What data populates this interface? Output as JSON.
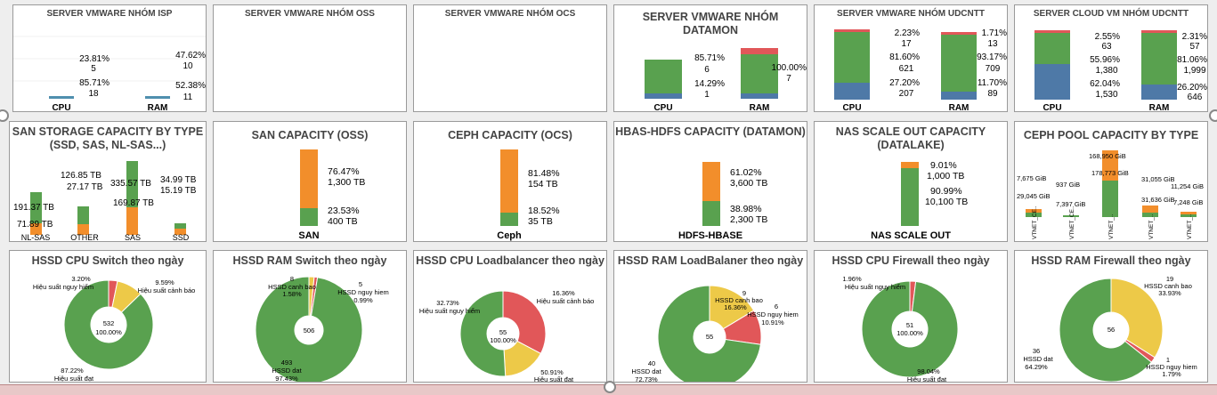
{
  "colors": {
    "green": "#59a14f",
    "blue": "#4e79a7",
    "red": "#e15759",
    "orange": "#f28e2b",
    "yellow": "#edc948",
    "steel": "#4f8fae"
  },
  "row1": {
    "isp": {
      "title": "SERVER VMWARE NHÓM ISP",
      "cats": [
        "CPU",
        "RAM"
      ],
      "cpu": {
        "a_pct": "23.81%",
        "a_val": "5",
        "b_pct": "85.71%",
        "b_val": "18"
      },
      "ram": {
        "a_pct": "47.62%",
        "a_val": "10",
        "b_pct": "52.38%",
        "b_val": "11"
      }
    },
    "oss": {
      "title": "SERVER VMWARE NHÓM OSS"
    },
    "ocs": {
      "title": "SERVER VMWARE NHÓM OCS"
    },
    "datamon": {
      "title": "SERVER VMWARE NHÓM DATAMON",
      "cats": [
        "CPU",
        "RAM"
      ],
      "cpu": {
        "a_pct": "85.71%",
        "a_val": "6",
        "b_pct": "14.29%",
        "b_val": "1"
      },
      "ram": {
        "a_pct": "100.00%",
        "a_val": "7"
      }
    },
    "udcntt": {
      "title": "SERVER VMWARE NHÓM UDCNTT",
      "cats": [
        "CPU",
        "RAM"
      ],
      "cpu": {
        "l1": "2.23%",
        "l2": "17",
        "l3": "81.60%",
        "l4": "621",
        "l5": "27.20%",
        "l6": "207"
      },
      "ram": {
        "l1": "1.71%",
        "l2": "13",
        "l3": "93.17%",
        "l4": "709",
        "l5": "11.70%",
        "l6": "89"
      }
    },
    "cloud": {
      "title": "SERVER CLOUD VM NHÓM UDCNTT",
      "cats": [
        "CPU",
        "RAM"
      ],
      "cpu": {
        "l1": "2.55%",
        "l2": "63",
        "l3": "55.96%",
        "l4": "1,380",
        "l5": "62.04%",
        "l6": "1,530"
      },
      "ram": {
        "l1": "2.31%",
        "l2": "57",
        "l3": "81.06%",
        "l4": "1,999",
        "l5": "26.20%",
        "l6": "646"
      }
    }
  },
  "row2": {
    "san_type": {
      "title": "SAN STORAGE CAPACITY BY TYPE (SSD, SAS, NL-SAS...)",
      "cats": [
        "NL-SAS",
        "OTHER",
        "SAS",
        "SSD"
      ],
      "total": [
        "191.37 TB",
        "126.85 TB",
        "335.57 TB",
        "34.99 TB"
      ],
      "used": [
        "71.89 TB",
        "27.17 TB",
        "169.87 TB",
        "15.19 TB"
      ]
    },
    "san_oss": {
      "title": "SAN CAPACITY (OSS)",
      "cat": "SAN",
      "top_pct": "76.47%",
      "top_val": "1,300 TB",
      "bot_pct": "23.53%",
      "bot_val": "400 TB"
    },
    "ceph_ocs": {
      "title": "CEPH CAPACITY (OCS)",
      "cat": "Ceph",
      "top_pct": "81.48%",
      "top_val": "154 TB",
      "bot_pct": "18.52%",
      "bot_val": "35 TB"
    },
    "hbase": {
      "title": "HBAS-HDFS CAPACITY (DATAMON)",
      "cat": "HDFS-HBASE",
      "top_pct": "61.02%",
      "top_val": "3,600 TB",
      "bot_pct": "38.98%",
      "bot_val": "2,300 TB"
    },
    "nas": {
      "title": "NAS SCALE OUT CAPACITY (DATALAKE)",
      "cat": "NAS SCALE OUT",
      "top_pct": "9.01%",
      "top_val": "1,000 TB",
      "bot_pct": "90.99%",
      "bot_val": "10,100 TB"
    },
    "ceph_pool": {
      "title": "CEPH POOL CAPACITY BY TYPE",
      "labels": [
        "7,675 GiB",
        "29,045 GiB",
        "937 GiB",
        "7,397 GiB",
        "168,950 GiB",
        "178,773 GiB",
        "31,055 GiB",
        "31,636 GiB",
        "11,254 GiB",
        "7,248 GiB"
      ],
      "cats": [
        "VTNET_CE..",
        "VTNET_CE..",
        "VTNET_..",
        "VTNET_..",
        "VTNET_.."
      ]
    }
  },
  "row3": [
    {
      "title": "HSSD CPU Switch theo ngày",
      "center": [
        "532",
        "100.00%"
      ],
      "labels": [
        [
          "3.20%",
          "Hiệu suất nguy hiểm"
        ],
        [
          "9.59%",
          "Hiệu suất cảnh báo"
        ],
        [
          "87.22%",
          "Hiệu suất đạt"
        ]
      ]
    },
    {
      "title": "HSSD RAM Switch theo ngày",
      "center": [
        "506"
      ],
      "labels": [
        [
          "8",
          "HSSD canh bao",
          "1.58%"
        ],
        [
          "5",
          "HSSD nguy hiem",
          "0.99%"
        ],
        [
          "493",
          "HSSD dat",
          "97.43%"
        ]
      ]
    },
    {
      "title": "HSSD CPU Loadbalancer theo ngày",
      "center": [
        "55",
        "100.00%"
      ],
      "labels": [
        [
          "32.73%",
          "Hiệu suất nguy hiểm"
        ],
        [
          "16.36%",
          "Hiệu suất cảnh báo"
        ],
        [
          "50.91%",
          "Hiệu suất đạt"
        ]
      ]
    },
    {
      "title": "HSSD RAM LoadBalaner theo ngày",
      "center": [
        "55"
      ],
      "labels": [
        [
          "9",
          "HSSD canh bao",
          "16.36%"
        ],
        [
          "6",
          "HSSD nguy hiem",
          "10.91%"
        ],
        [
          "40",
          "HSSD dat",
          "72.73%"
        ]
      ]
    },
    {
      "title": "HSSD CPU Firewall theo ngày",
      "center": [
        "51",
        "100.00%"
      ],
      "labels": [
        [
          "1.96%",
          "Hiệu suất nguy hiểm"
        ],
        [
          "98.04%",
          "Hiệu suất đạt"
        ]
      ]
    },
    {
      "title": "HSSD RAM Firewall theo ngày",
      "center": [
        "56"
      ],
      "labels": [
        [
          "19",
          "HSSD canh bao",
          "33.93%"
        ],
        [
          "1",
          "HSSD nguy hiem",
          "1.79%"
        ],
        [
          "36",
          "HSSD dat",
          "64.29%"
        ]
      ]
    }
  ],
  "chart_data": [
    {
      "type": "pie",
      "title": "HSSD CPU Switch theo ngày",
      "labels": [
        "Hiệu suất nguy hiểm",
        "Hiệu suất cảnh báo",
        "Hiệu suất đạt"
      ],
      "values": [
        3.2,
        9.59,
        87.22
      ]
    },
    {
      "type": "pie",
      "title": "HSSD RAM Switch theo ngày",
      "labels": [
        "HSSD canh bao",
        "HSSD nguy hiem",
        "HSSD dat"
      ],
      "values": [
        8,
        5,
        493
      ]
    },
    {
      "type": "pie",
      "title": "HSSD CPU Loadbalancer theo ngày",
      "labels": [
        "Hiệu suất nguy hiểm",
        "Hiệu suất cảnh báo",
        "Hiệu suất đạt"
      ],
      "values": [
        32.73,
        16.36,
        50.91
      ]
    },
    {
      "type": "pie",
      "title": "HSSD RAM LoadBalaner theo ngày",
      "labels": [
        "HSSD canh bao",
        "HSSD nguy hiem",
        "HSSD dat"
      ],
      "values": [
        9,
        6,
        40
      ]
    },
    {
      "type": "pie",
      "title": "HSSD CPU Firewall theo ngày",
      "labels": [
        "Hiệu suất nguy hiểm",
        "Hiệu suất đạt"
      ],
      "values": [
        1.96,
        98.04
      ]
    },
    {
      "type": "pie",
      "title": "HSSD RAM Firewall theo ngày",
      "labels": [
        "HSSD canh bao",
        "HSSD nguy hiem",
        "HSSD dat"
      ],
      "values": [
        19,
        1,
        36
      ]
    }
  ]
}
